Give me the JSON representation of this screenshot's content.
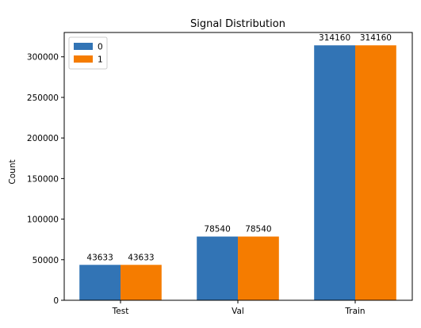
{
  "chart_data": {
    "type": "bar",
    "title": "Signal Distribution",
    "xlabel": "",
    "ylabel": "Count",
    "categories": [
      "Test",
      "Val",
      "Train"
    ],
    "series": [
      {
        "name": "0",
        "values": [
          43633,
          78540,
          314160
        ],
        "color": "#3274b5"
      },
      {
        "name": "1",
        "values": [
          43633,
          78540,
          314160
        ],
        "color": "#f57c00"
      }
    ],
    "data_labels": [
      [
        "43633",
        "78540",
        "314160"
      ],
      [
        "43633",
        "78540",
        "314160"
      ]
    ],
    "ylim": [
      0,
      330000
    ],
    "yticks": [
      0,
      50000,
      100000,
      150000,
      200000,
      250000,
      300000
    ],
    "ytick_labels": [
      "0",
      "50000",
      "100000",
      "150000",
      "200000",
      "250000",
      "300000"
    ],
    "grid": false,
    "legend_position": "top-left"
  }
}
